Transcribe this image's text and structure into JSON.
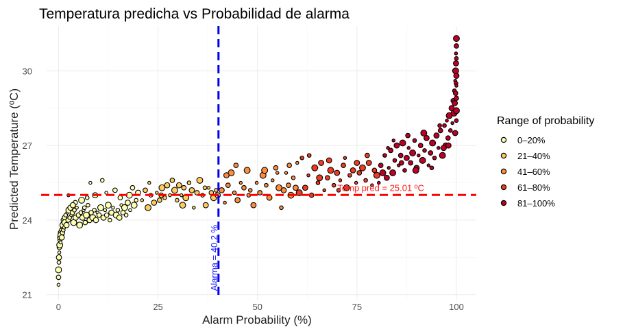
{
  "chart_data": {
    "type": "scatter",
    "title": "Temperatura predicha vs Probabilidad de alarma",
    "xlabel": "Alarm Probability (%)",
    "ylabel": "Predicted Temperature (ºC)",
    "xlim": [
      -3,
      105
    ],
    "ylim": [
      20.8,
      31.8
    ],
    "x_ticks": [
      0,
      25,
      50,
      75,
      100
    ],
    "x_tick_labels": [
      "0",
      "25",
      "50",
      "75",
      "100"
    ],
    "y_ticks": [
      21,
      24,
      27,
      30
    ],
    "y_tick_labels": [
      "21",
      "24",
      "27",
      "30"
    ],
    "grid": true,
    "legend": {
      "title": "Range of probability",
      "placement": "right",
      "entries": [
        {
          "label": "0–20%",
          "color": "#ffffb2"
        },
        {
          "label": "21–40%",
          "color": "#fecc5c"
        },
        {
          "label": "41–60%",
          "color": "#fd8d3c"
        },
        {
          "label": "61–80%",
          "color": "#f03b20"
        },
        {
          "label": "81–100%",
          "color": "#bd0026"
        }
      ]
    },
    "reference_lines": [
      {
        "orientation": "horizontal",
        "value": 25.01,
        "color": "#ff0000",
        "style": "dashed",
        "label": "Temp pred = 25.01 ºC"
      },
      {
        "orientation": "vertical",
        "value": 40.2,
        "color": "#0000ee",
        "style": "dashed",
        "label": "Alarma = 40.2 %"
      }
    ],
    "points": [
      [
        0,
        21.4
      ],
      [
        0,
        21.7
      ],
      [
        0,
        22.0
      ],
      [
        0.1,
        22.3
      ],
      [
        0.1,
        22.5
      ],
      [
        0.2,
        22.7
      ],
      [
        0.2,
        22.9
      ],
      [
        0.3,
        23.0
      ],
      [
        0.3,
        23.2
      ],
      [
        0.4,
        23.3
      ],
      [
        0.5,
        23.1
      ],
      [
        0.5,
        23.5
      ],
      [
        0.6,
        23.4
      ],
      [
        0.7,
        23.6
      ],
      [
        0.8,
        23.3
      ],
      [
        0.9,
        23.7
      ],
      [
        1.0,
        23.5
      ],
      [
        1.1,
        23.8
      ],
      [
        1.2,
        23.6
      ],
      [
        1.3,
        24.0
      ],
      [
        1.4,
        23.7
      ],
      [
        1.5,
        24.1
      ],
      [
        1.6,
        23.9
      ],
      [
        1.8,
        24.2
      ],
      [
        2.0,
        23.8
      ],
      [
        2.2,
        24.3
      ],
      [
        2.4,
        24.0
      ],
      [
        2.6,
        24.4
      ],
      [
        2.8,
        24.1
      ],
      [
        3.0,
        24.5
      ],
      [
        3.2,
        24.2
      ],
      [
        3.5,
        24.3
      ],
      [
        3.8,
        23.9
      ],
      [
        4.0,
        24.4
      ],
      [
        4.3,
        24.1
      ],
      [
        4.6,
        24.5
      ],
      [
        5.0,
        24.2
      ],
      [
        5.3,
        23.8
      ],
      [
        5.6,
        24.3
      ],
      [
        6.0,
        24.1
      ],
      [
        6.3,
        24.4
      ],
      [
        6.7,
        23.9
      ],
      [
        7.0,
        24.2
      ],
      [
        7.4,
        24.6
      ],
      [
        7.8,
        24.0
      ],
      [
        8.0,
        25.5
      ],
      [
        8.2,
        24.3
      ],
      [
        8.6,
        24.1
      ],
      [
        9.0,
        24.4
      ],
      [
        9.4,
        24.0
      ],
      [
        9.8,
        24.3
      ],
      [
        10.2,
        24.2
      ],
      [
        10.6,
        24.5
      ],
      [
        11.0,
        25.6
      ],
      [
        11.3,
        24.1
      ],
      [
        11.7,
        24.4
      ],
      [
        12.1,
        24.2
      ],
      [
        12.5,
        24.6
      ],
      [
        12.9,
        24.0
      ],
      [
        13.3,
        24.3
      ],
      [
        13.7,
        24.5
      ],
      [
        14.2,
        25.2
      ],
      [
        14.5,
        24.2
      ],
      [
        14.9,
        24.4
      ],
      [
        15.3,
        24.1
      ],
      [
        15.8,
        24.6
      ],
      [
        16.2,
        24.3
      ],
      [
        16.6,
        24.5
      ],
      [
        17.0,
        24.2
      ],
      [
        17.4,
        24.7
      ],
      [
        18.0,
        24.4
      ],
      [
        18.6,
        25.3
      ],
      [
        19.0,
        24.6
      ],
      [
        19.5,
        24.8
      ],
      [
        20.0,
        25.1
      ],
      [
        2.5,
        25.0
      ],
      [
        4.2,
        24.7
      ],
      [
        5.8,
        24.8
      ],
      [
        7.2,
        24.9
      ],
      [
        9.2,
        25.0
      ],
      [
        12.0,
        25.1
      ],
      [
        15.5,
        24.9
      ],
      [
        17.8,
        25.0
      ],
      [
        6.5,
        24.5
      ],
      [
        3.6,
        24.6
      ],
      [
        21.0,
        24.8
      ],
      [
        21.8,
        25.2
      ],
      [
        22.5,
        24.5
      ],
      [
        23.2,
        25.0
      ],
      [
        24.0,
        24.7
      ],
      [
        24.7,
        25.1
      ],
      [
        25.4,
        24.8
      ],
      [
        26.0,
        25.3
      ],
      [
        26.7,
        24.9
      ],
      [
        27.3,
        25.4
      ],
      [
        28.0,
        25.0
      ],
      [
        28.6,
        25.6
      ],
      [
        29.2,
        25.2
      ],
      [
        29.8,
        24.8
      ],
      [
        30.3,
        25.4
      ],
      [
        30.9,
        25.0
      ],
      [
        31.5,
        25.3
      ],
      [
        32.0,
        24.9
      ],
      [
        32.8,
        25.5
      ],
      [
        33.5,
        25.2
      ],
      [
        34.0,
        24.5
      ],
      [
        34.8,
        25.1
      ],
      [
        35.5,
        25.6
      ],
      [
        36.2,
        25.0
      ],
      [
        37.0,
        24.6
      ],
      [
        37.7,
        25.3
      ],
      [
        38.4,
        25.1
      ],
      [
        39.0,
        24.9
      ],
      [
        39.6,
        25.2
      ],
      [
        40.0,
        25.0
      ],
      [
        22.8,
        25.5
      ],
      [
        25.8,
        25.0
      ],
      [
        31.2,
        24.6
      ],
      [
        36.8,
        25.3
      ],
      [
        41.0,
        25.2
      ],
      [
        41.8,
        24.7
      ],
      [
        42.6,
        25.4
      ],
      [
        43.4,
        25.9
      ],
      [
        44.2,
        25.1
      ],
      [
        45.0,
        24.8
      ],
      [
        45.8,
        25.5
      ],
      [
        46.6,
        25.3
      ],
      [
        47.4,
        26.0
      ],
      [
        48.2,
        25.2
      ],
      [
        49.0,
        24.6
      ],
      [
        49.8,
        25.5
      ],
      [
        50.6,
        25.1
      ],
      [
        51.4,
        25.8
      ],
      [
        52.2,
        25.4
      ],
      [
        53.0,
        24.9
      ],
      [
        53.8,
        25.6
      ],
      [
        54.6,
        26.1
      ],
      [
        55.4,
        25.3
      ],
      [
        56.0,
        24.5
      ],
      [
        56.6,
        25.2
      ],
      [
        57.2,
        25.9
      ],
      [
        57.8,
        25.4
      ],
      [
        58.4,
        25.0
      ],
      [
        59.0,
        25.7
      ],
      [
        59.6,
        25.3
      ],
      [
        60.0,
        26.3
      ],
      [
        44.6,
        26.2
      ],
      [
        51.8,
        26.0
      ],
      [
        47.8,
        25.0
      ],
      [
        42.2,
        25.8
      ],
      [
        55.0,
        25.9
      ],
      [
        58.0,
        26.2
      ],
      [
        60.5,
        25.1
      ],
      [
        61.2,
        26.5
      ],
      [
        62.0,
        25.3
      ],
      [
        62.8,
        25.8
      ],
      [
        63.6,
        25.0
      ],
      [
        64.4,
        26.1
      ],
      [
        65.2,
        25.5
      ],
      [
        66.0,
        26.3
      ],
      [
        66.8,
        25.2
      ],
      [
        67.6,
        25.7
      ],
      [
        68.4,
        26.0
      ],
      [
        69.2,
        25.4
      ],
      [
        70.0,
        25.9
      ],
      [
        70.8,
        25.6
      ],
      [
        71.6,
        26.2
      ],
      [
        72.4,
        25.3
      ],
      [
        73.2,
        25.8
      ],
      [
        74.0,
        26.0
      ],
      [
        74.8,
        25.5
      ],
      [
        75.6,
        25.9
      ],
      [
        76.4,
        26.1
      ],
      [
        77.2,
        25.6
      ],
      [
        78.0,
        26.3
      ],
      [
        78.8,
        25.4
      ],
      [
        79.4,
        26.0
      ],
      [
        80.0,
        25.8
      ],
      [
        63.0,
        26.6
      ],
      [
        68.0,
        26.4
      ],
      [
        72.0,
        26.5
      ],
      [
        77.6,
        26.6
      ],
      [
        65.6,
        25.7
      ],
      [
        70.4,
        25.2
      ],
      [
        75.0,
        26.3
      ],
      [
        80.5,
        25.5
      ],
      [
        81.0,
        26.2
      ],
      [
        81.5,
        25.9
      ],
      [
        82.0,
        26.6
      ],
      [
        82.5,
        25.7
      ],
      [
        83.0,
        26.1
      ],
      [
        83.5,
        26.8
      ],
      [
        84.0,
        25.9
      ],
      [
        84.5,
        26.4
      ],
      [
        85.0,
        27.0
      ],
      [
        85.5,
        26.2
      ],
      [
        86.0,
        26.6
      ],
      [
        86.5,
        27.1
      ],
      [
        87.0,
        26.0
      ],
      [
        87.5,
        26.5
      ],
      [
        88.0,
        26.9
      ],
      [
        88.5,
        26.3
      ],
      [
        89.0,
        26.7
      ],
      [
        89.5,
        27.2
      ],
      [
        90.0,
        26.1
      ],
      [
        90.5,
        26.6
      ],
      [
        91.0,
        27.0
      ],
      [
        91.5,
        26.4
      ],
      [
        92.0,
        26.8
      ],
      [
        92.5,
        27.3
      ],
      [
        93.0,
        26.2
      ],
      [
        93.5,
        26.7
      ],
      [
        94.0,
        27.1
      ],
      [
        94.5,
        26.5
      ],
      [
        95.0,
        27.4
      ],
      [
        95.5,
        26.9
      ],
      [
        96.0,
        27.6
      ],
      [
        96.5,
        26.6
      ],
      [
        97.0,
        27.8
      ],
      [
        97.3,
        27.0
      ],
      [
        97.6,
        28.0
      ],
      [
        97.9,
        27.3
      ],
      [
        98.2,
        28.2
      ],
      [
        98.5,
        27.6
      ],
      [
        98.8,
        28.5
      ],
      [
        99.0,
        27.9
      ],
      [
        99.2,
        28.8
      ],
      [
        99.4,
        28.3
      ],
      [
        99.5,
        29.2
      ],
      [
        99.6,
        28.7
      ],
      [
        99.7,
        29.6
      ],
      [
        99.8,
        29.1
      ],
      [
        99.8,
        30.0
      ],
      [
        99.9,
        29.5
      ],
      [
        99.9,
        30.3
      ],
      [
        99.9,
        30.7
      ],
      [
        100,
        31.0
      ],
      [
        100,
        31.3
      ],
      [
        100,
        30.5
      ],
      [
        100,
        29.8
      ],
      [
        100,
        29.4
      ],
      [
        100,
        28.9
      ],
      [
        100,
        28.4
      ],
      [
        100,
        28.0
      ],
      [
        99.7,
        27.5
      ],
      [
        84.2,
        27.2
      ],
      [
        87.8,
        27.4
      ],
      [
        91.8,
        27.5
      ],
      [
        95.8,
        27.8
      ],
      [
        98.0,
        27.0
      ],
      [
        82.8,
        26.9
      ],
      [
        86.2,
        26.3
      ],
      [
        89.8,
        26.0
      ],
      [
        93.8,
        26.1
      ],
      [
        96.8,
        26.9
      ]
    ]
  }
}
